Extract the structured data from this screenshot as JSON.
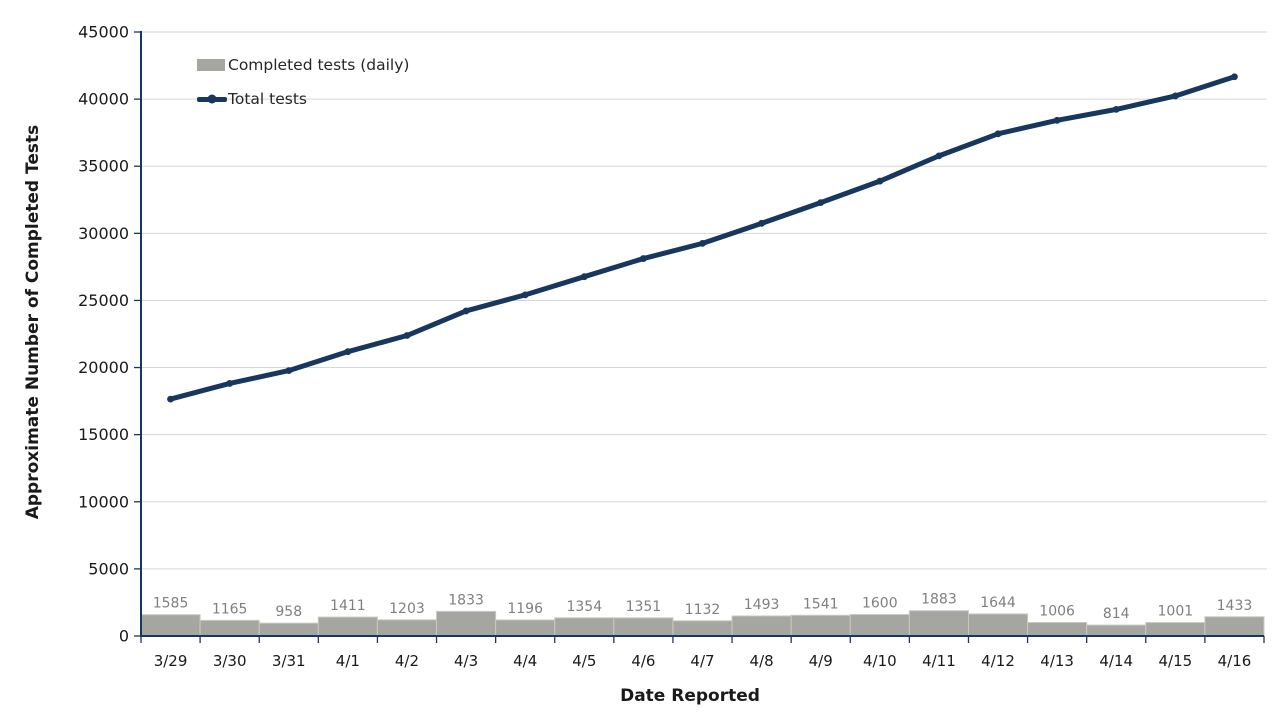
{
  "chart_data": {
    "type": "bar",
    "subtype": "combo: daily bars with cumulative total line",
    "title": "",
    "xlabel": "Date Reported",
    "ylabel": "Approximate Number of Completed Tests",
    "categories": [
      "3/29",
      "3/30",
      "3/31",
      "4/1",
      "4/2",
      "4/3",
      "4/4",
      "4/5",
      "4/6",
      "4/7",
      "4/8",
      "4/9",
      "4/10",
      "4/11",
      "4/12",
      "4/13",
      "4/14",
      "4/15",
      "4/16"
    ],
    "series": [
      {
        "name": "Completed tests (daily)",
        "chart_type": "bar",
        "color": "#A6A6A0",
        "border_color": "#C9C9C1",
        "values": [
          1585,
          1165,
          958,
          1411,
          1203,
          1833,
          1196,
          1354,
          1351,
          1132,
          1493,
          1541,
          1600,
          1883,
          1644,
          1006,
          814,
          1001,
          1433
        ],
        "value_labels_shown": true
      },
      {
        "name": "Total tests",
        "chart_type": "line",
        "color": "#17375E",
        "values": [
          17650,
          18815,
          19773,
          21184,
          22387,
          24220,
          25416,
          26770,
          28121,
          29253,
          30746,
          32287,
          33887,
          35770,
          37414,
          38420,
          39234,
          40235,
          41668
        ]
      }
    ],
    "ylim": [
      0,
      45000
    ],
    "yticks": [
      0,
      5000,
      10000,
      15000,
      20000,
      25000,
      30000,
      35000,
      40000,
      45000
    ],
    "grid": "horizontal",
    "legend_position": "top-left-inside",
    "colors": {
      "axis_line": "#17375E",
      "gridline": "#D6D6D6",
      "tick_text": "#1a1a1a",
      "bar_value_label_text": "#7F7F7F",
      "background": "#FFFFFF"
    }
  }
}
